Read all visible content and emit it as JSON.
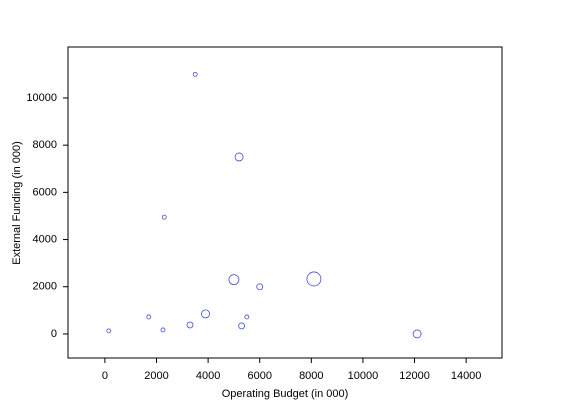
{
  "chart_data": {
    "type": "bubble",
    "x_label": "Operating Budget (in 000)",
    "y_label": "External Funding (in 000)",
    "x": [
      3500,
      5200,
      2300,
      5000,
      6000,
      8100,
      3900,
      5500,
      1700,
      3300,
      5300,
      2250,
      150,
      12100
    ],
    "values": [
      11000,
      7500,
      4950,
      2300,
      2000,
      2330,
      850,
      720,
      720,
      380,
      340,
      170,
      130,
      0
    ],
    "sizes": [
      2,
      4,
      2,
      5,
      3,
      7,
      4,
      2,
      2,
      3,
      3,
      2,
      2,
      4
    ],
    "color": "#3a4fd0",
    "xlim": [
      -1430,
      15390
    ],
    "xticks": [
      0,
      2000,
      4000,
      6000,
      8000,
      10000,
      12000,
      14000
    ],
    "ylim": [
      -1020,
      12160
    ],
    "yticks": [
      0,
      2000,
      4000,
      6000,
      8000,
      10000
    ],
    "grid": false
  }
}
